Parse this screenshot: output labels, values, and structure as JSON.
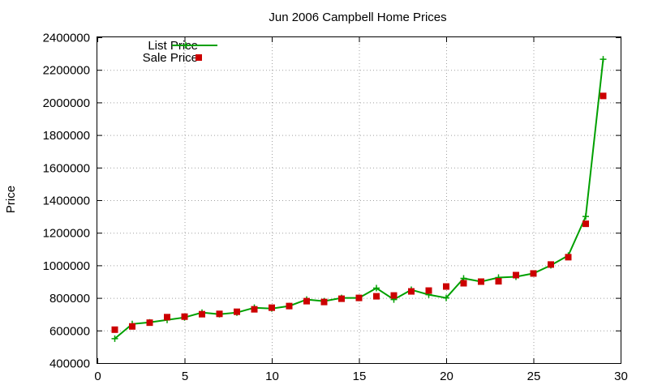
{
  "chart_data": {
    "type": "line",
    "title": "Jun 2006 Campbell Home Prices",
    "xlabel": "",
    "ylabel": "Price",
    "xlim": [
      0,
      30
    ],
    "ylim": [
      400000,
      2400000
    ],
    "xticks": [
      "0",
      "5",
      "10",
      "15",
      "20",
      "25",
      "30"
    ],
    "yticks": [
      "400000",
      "600000",
      "800000",
      "1000000",
      "1200000",
      "1400000",
      "1600000",
      "1800000",
      "2000000",
      "2200000",
      "2400000"
    ],
    "grid": true,
    "legend_position": "top-left",
    "x": [
      1,
      2,
      3,
      4,
      5,
      6,
      7,
      8,
      9,
      10,
      11,
      12,
      13,
      14,
      15,
      16,
      17,
      18,
      19,
      20,
      21,
      22,
      23,
      24,
      25,
      26,
      27,
      28,
      29
    ],
    "series": [
      {
        "name": "List Price",
        "style": "line+cross",
        "color": "#00a000",
        "values": [
          550000,
          640000,
          650000,
          665000,
          680000,
          710000,
          700000,
          710000,
          740000,
          735000,
          750000,
          790000,
          780000,
          800000,
          800000,
          860000,
          790000,
          850000,
          820000,
          800000,
          920000,
          900000,
          925000,
          930000,
          950000,
          1000000,
          1060000,
          1300000,
          2265000
        ]
      },
      {
        "name": "Sale Price",
        "style": "square",
        "color": "#cc0000",
        "values": [
          605000,
          625000,
          648000,
          682000,
          685000,
          700000,
          702000,
          715000,
          730000,
          740000,
          750000,
          780000,
          775000,
          795000,
          800000,
          810000,
          815000,
          840000,
          845000,
          870000,
          890000,
          900000,
          902000,
          940000,
          950000,
          1005000,
          1050000,
          1255000,
          2040000
        ]
      }
    ]
  }
}
